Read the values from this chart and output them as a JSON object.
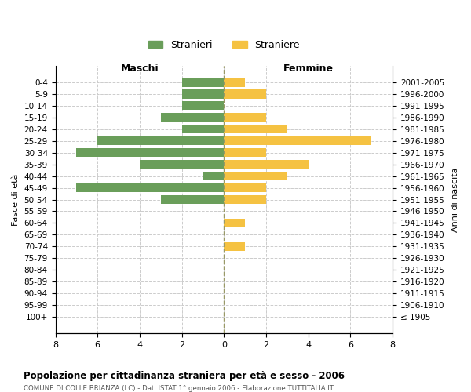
{
  "age_groups": [
    "100+",
    "95-99",
    "90-94",
    "85-89",
    "80-84",
    "75-79",
    "70-74",
    "65-69",
    "60-64",
    "55-59",
    "50-54",
    "45-49",
    "40-44",
    "35-39",
    "30-34",
    "25-29",
    "20-24",
    "15-19",
    "10-14",
    "5-9",
    "0-4"
  ],
  "birth_years": [
    "≤ 1905",
    "1906-1910",
    "1911-1915",
    "1916-1920",
    "1921-1925",
    "1926-1930",
    "1931-1935",
    "1936-1940",
    "1941-1945",
    "1946-1950",
    "1951-1955",
    "1956-1960",
    "1961-1965",
    "1966-1970",
    "1971-1975",
    "1976-1980",
    "1981-1985",
    "1986-1990",
    "1991-1995",
    "1996-2000",
    "2001-2005"
  ],
  "maschi": [
    0,
    0,
    0,
    0,
    0,
    0,
    0,
    0,
    0,
    0,
    3,
    7,
    1,
    4,
    7,
    6,
    2,
    3,
    2,
    2,
    2
  ],
  "femmine": [
    0,
    0,
    0,
    0,
    0,
    0,
    1,
    0,
    1,
    0,
    2,
    2,
    3,
    4,
    2,
    7,
    3,
    2,
    0,
    2,
    1
  ],
  "maschi_color": "#6a9e5a",
  "femmine_color": "#f5c242",
  "title": "Popolazione per cittadinanza straniera per età e sesso - 2006",
  "subtitle": "COMUNE DI COLLE BRIANZA (LC) - Dati ISTAT 1° gennaio 2006 - Elaborazione TUTTITALIA.IT",
  "xlabel_left": "Maschi",
  "xlabel_right": "Femmine",
  "ylabel_left": "Fasce di età",
  "ylabel_right": "Anni di nascita",
  "legend_maschi": "Stranieri",
  "legend_femmine": "Straniere",
  "xlim": 8,
  "background_color": "#ffffff",
  "grid_color": "#cccccc",
  "bar_height": 0.75
}
